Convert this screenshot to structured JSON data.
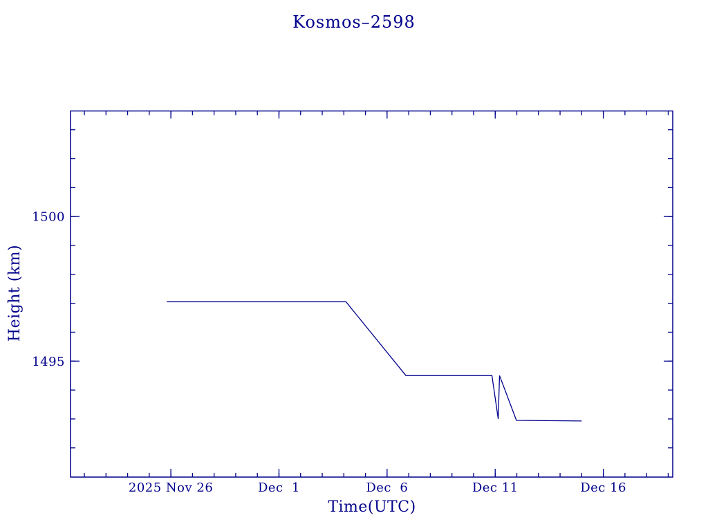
{
  "page": {
    "background": "#ffffff"
  },
  "chart": {
    "accent_color": "#00008B"
  },
  "chart_data": {
    "type": "line",
    "title": "Kosmos–2598",
    "xlabel": "Time(UTC)",
    "ylabel": "Height (km)",
    "x_unit": "days since 2025 Nov 26 00:00 UTC",
    "xlim": [
      -4.64,
      23.21
    ],
    "ylim": [
      1490.99,
      1503.65
    ],
    "grid": false,
    "legend": null,
    "line_color": "#00008B",
    "x_major_ticks": [
      {
        "value": 0,
        "label": "2025 Nov 26"
      },
      {
        "value": 5,
        "label": "Dec  1"
      },
      {
        "value": 10,
        "label": "Dec  6"
      },
      {
        "value": 15,
        "label": "Dec 11"
      },
      {
        "value": 20,
        "label": "Dec 16"
      }
    ],
    "x_minor_ticks": {
      "start": -4,
      "step": 1,
      "end": 23
    },
    "y_major_ticks": [
      {
        "value": 1495,
        "label": "1495"
      },
      {
        "value": 1500,
        "label": "1500"
      }
    ],
    "y_minor_ticks": {
      "start": 1492,
      "step": 1,
      "end": 1503
    },
    "series": [
      {
        "name": "height",
        "color": "#00008B",
        "points": [
          [
            -0.19,
            1497.05
          ],
          [
            8.1,
            1497.05
          ],
          [
            10.87,
            1494.5
          ],
          [
            14.85,
            1494.5
          ],
          [
            15.14,
            1493.0
          ],
          [
            15.2,
            1494.5
          ],
          [
            15.98,
            1492.95
          ],
          [
            19.0,
            1492.93
          ]
        ]
      }
    ]
  }
}
